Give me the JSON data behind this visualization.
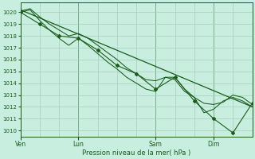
{
  "title": "",
  "xlabel": "Pression niveau de la mer( hPa )",
  "ylabel": "",
  "bg_color": "#c8eee0",
  "grid_color": "#a8ccbb",
  "line_color": "#1a5c1a",
  "ylim": [
    1009.5,
    1020.8
  ],
  "yticks": [
    1010,
    1011,
    1012,
    1013,
    1014,
    1015,
    1016,
    1017,
    1018,
    1019,
    1020
  ],
  "xtick_labels": [
    "Ven",
    "Lun",
    "Sam",
    "Dim"
  ],
  "xtick_positions": [
    0,
    72,
    168,
    240
  ],
  "total_hours": 288,
  "line_straight": {
    "x": [
      0,
      288
    ],
    "y": [
      1020.2,
      1012.0
    ]
  },
  "line1": {
    "x": [
      0,
      12,
      24,
      36,
      48,
      60,
      72,
      84,
      96,
      108,
      120,
      132,
      144,
      156,
      168,
      180,
      192,
      204,
      216,
      228,
      240,
      252,
      264,
      276,
      288
    ],
    "y": [
      1020.1,
      1020.3,
      1019.6,
      1019.0,
      1018.5,
      1018.0,
      1018.2,
      1017.8,
      1017.2,
      1016.6,
      1016.0,
      1015.3,
      1014.8,
      1014.3,
      1014.2,
      1014.5,
      1014.3,
      1013.3,
      1012.8,
      1012.3,
      1012.2,
      1012.4,
      1013.0,
      1012.8,
      1012.2
    ]
  },
  "line2": {
    "x": [
      0,
      12,
      24,
      36,
      48,
      60,
      72,
      84,
      96,
      108,
      120,
      132,
      144,
      156,
      168,
      180,
      192,
      204,
      216,
      228,
      240,
      252,
      264,
      276,
      288
    ],
    "y": [
      1020.0,
      1020.2,
      1019.3,
      1018.5,
      1017.8,
      1017.2,
      1017.8,
      1017.2,
      1016.5,
      1015.8,
      1015.2,
      1014.5,
      1014.0,
      1013.5,
      1013.3,
      1014.5,
      1014.5,
      1013.5,
      1012.8,
      1011.5,
      1011.8,
      1012.5,
      1012.8,
      1012.5,
      1012.0
    ]
  },
  "line3": {
    "x": [
      0,
      24,
      48,
      72,
      96,
      120,
      144,
      168,
      192,
      216,
      240,
      264,
      288
    ],
    "y": [
      1020.0,
      1019.0,
      1018.0,
      1017.8,
      1016.8,
      1015.5,
      1014.8,
      1013.5,
      1014.5,
      1012.5,
      1011.0,
      1009.8,
      1012.3
    ]
  },
  "line3_markers": {
    "x": [
      0,
      24,
      48,
      72,
      96,
      120,
      144,
      168,
      192,
      216,
      240,
      264,
      288
    ],
    "y": [
      1020.0,
      1019.0,
      1018.0,
      1017.8,
      1016.8,
      1015.5,
      1014.8,
      1013.5,
      1014.5,
      1012.5,
      1011.0,
      1009.8,
      1012.3
    ]
  }
}
